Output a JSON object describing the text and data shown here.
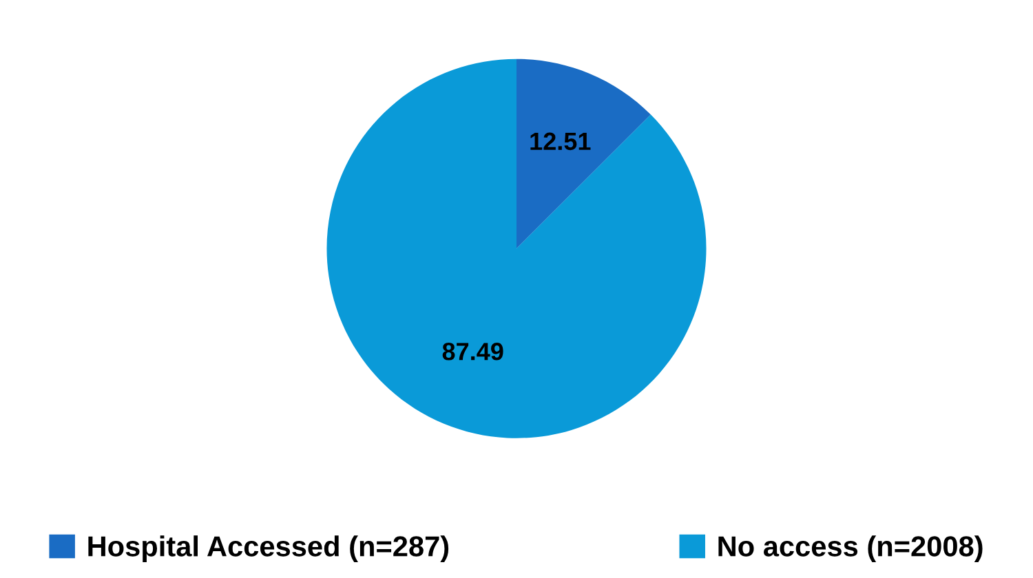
{
  "chart_data": {
    "type": "pie",
    "categories": [
      "Hospital Accessed (n=287)",
      "No access (n=2008)"
    ],
    "values": [
      12.51,
      87.49
    ],
    "colors": [
      "#1a6cc4",
      "#0a9ad8"
    ],
    "data_labels": true,
    "legend": "bottom"
  }
}
